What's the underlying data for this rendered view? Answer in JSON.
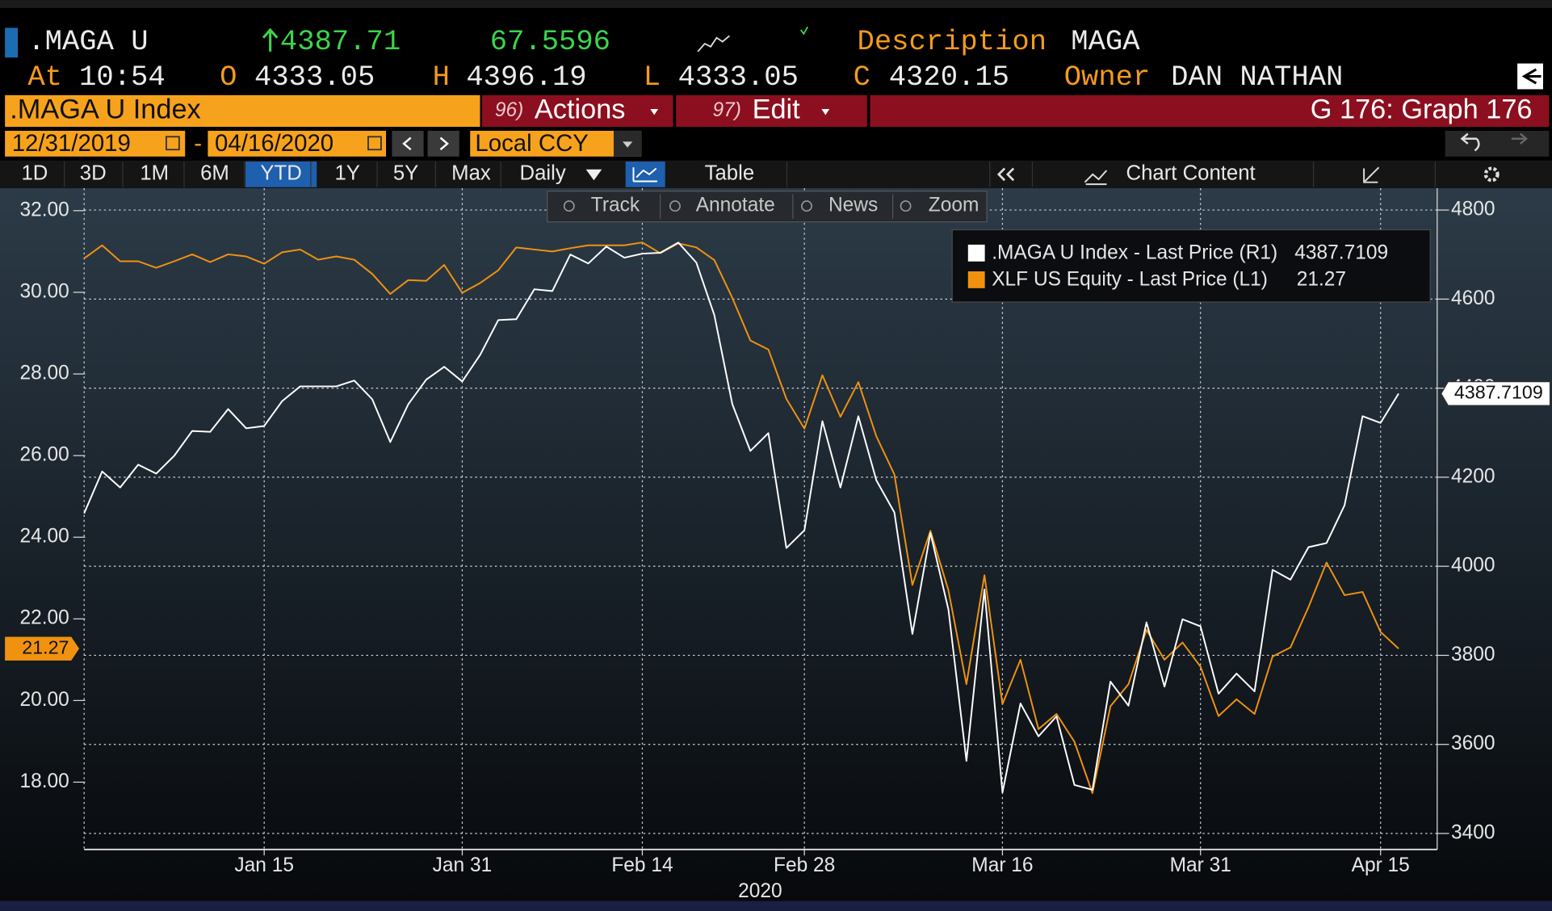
{
  "quote": {
    "ticker": ".MAGA U",
    "price": "4387.71",
    "change": "67.5596",
    "description_label": "Description",
    "description": "MAGA",
    "time_label": "At",
    "time": "10:54",
    "open_label": "O",
    "open": "4333.05",
    "high_label": "H",
    "high": "4396.19",
    "low_label": "L",
    "low": "4333.05",
    "close_label": "C",
    "close": "4320.15",
    "owner_label": "Owner",
    "owner": "DAN NATHAN"
  },
  "toolbar": {
    "security": ".MAGA U Index",
    "actions_key": "96)",
    "actions": "Actions",
    "edit_key": "97)",
    "edit": "Edit",
    "graph": "G 176: Graph 176"
  },
  "range": {
    "start": "12/31/2019",
    "separator": "-",
    "end": "04/16/2020",
    "currency": "Local CCY"
  },
  "periods": [
    "1D",
    "3D",
    "1M",
    "6M",
    "YTD",
    "1Y",
    "5Y",
    "Max"
  ],
  "selected_period": "YTD",
  "frequency": "Daily",
  "table": "Table",
  "chart_content": "Chart Content",
  "chart_tools": [
    "Track",
    "Annotate",
    "News",
    "Zoom"
  ],
  "chart_data": {
    "type": "line",
    "xlabel": "2020",
    "categories": [
      null,
      null,
      null,
      null,
      null,
      null,
      null,
      null,
      null,
      null,
      "Jan 15",
      null,
      null,
      null,
      null,
      null,
      null,
      null,
      null,
      null,
      null,
      "Jan 31",
      null,
      null,
      null,
      null,
      null,
      null,
      null,
      null,
      null,
      "Feb 14",
      null,
      null,
      null,
      null,
      null,
      null,
      null,
      null,
      "Feb 28",
      null,
      null,
      null,
      null,
      null,
      null,
      null,
      null,
      null,
      null,
      "Mar 16",
      null,
      null,
      null,
      null,
      null,
      null,
      null,
      null,
      null,
      null,
      "Mar 31",
      null,
      null,
      null,
      null,
      null,
      null,
      null,
      null,
      null,
      "Apr 15",
      null
    ],
    "series": [
      {
        "name": ".MAGA U Index - Last Price (R1)",
        "color": "#ffffff",
        "axis": "y2",
        "values": [
          4119,
          4213,
          4177,
          4228,
          4208,
          4248,
          4304,
          4302,
          4353,
          4310,
          4315,
          4371,
          4404,
          4404,
          4404,
          4417,
          4375,
          4279,
          4364,
          4419,
          4448,
          4415,
          4475,
          4553,
          4555,
          4622,
          4618,
          4700,
          4680,
          4718,
          4693,
          4702,
          4704,
          4727,
          4682,
          4564,
          4364,
          4259,
          4299,
          4041,
          4081,
          4326,
          4177,
          4337,
          4193,
          4121,
          3848,
          4075,
          3903,
          3563,
          3948,
          3492,
          3692,
          3618,
          3663,
          3509,
          3498,
          3741,
          3687,
          3874,
          3730,
          3881,
          3865,
          3714,
          3759,
          3719,
          3992,
          3970,
          4043,
          4052,
          4137,
          4337,
          4322,
          4387.7109
        ]
      },
      {
        "name": "XLF US Equity - Last Price (L1)",
        "color": "#f0920f",
        "axis": "y",
        "values": [
          30.83,
          31.15,
          30.76,
          30.76,
          30.6,
          30.76,
          30.93,
          30.74,
          30.93,
          30.88,
          30.7,
          30.98,
          31.05,
          30.8,
          30.88,
          30.8,
          30.45,
          29.96,
          30.3,
          30.28,
          30.67,
          29.99,
          30.23,
          30.54,
          31.1,
          31.05,
          31.0,
          31.08,
          31.15,
          31.15,
          31.15,
          31.22,
          30.96,
          31.2,
          31.1,
          30.79,
          29.86,
          28.82,
          28.6,
          27.39,
          26.66,
          27.97,
          26.95,
          27.8,
          26.47,
          25.54,
          22.83,
          24.16,
          22.7,
          20.4,
          23.07,
          19.91,
          21.0,
          19.3,
          19.67,
          18.99,
          17.73,
          19.86,
          20.4,
          21.73,
          21.0,
          21.42,
          20.83,
          19.62,
          20.03,
          19.67,
          21.08,
          21.3,
          22.29,
          23.38,
          22.58,
          22.66,
          21.68,
          21.27
        ]
      }
    ],
    "ylim": [
      16.35,
      32.55
    ],
    "yticks": [
      {
        "value": 18,
        "label": "18.00"
      },
      {
        "value": 20,
        "label": "20.00"
      },
      {
        "value": 22,
        "label": "22.00"
      },
      {
        "value": 24,
        "label": "24.00"
      },
      {
        "value": 26,
        "label": "26.00"
      },
      {
        "value": 28,
        "label": "28.00"
      },
      {
        "value": 30,
        "label": "30.00"
      },
      {
        "value": 32,
        "label": "32.00"
      }
    ],
    "y2lim": [
      3364,
      4849
    ],
    "y2ticks": [
      3400,
      3600,
      3800,
      4000,
      4200,
      4400,
      4600,
      4800
    ],
    "grid": "y2"
  }
}
